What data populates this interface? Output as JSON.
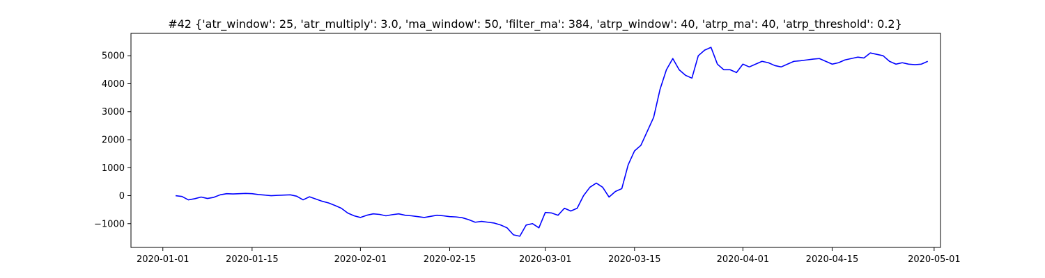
{
  "chart_data": {
    "type": "line",
    "title": "#42 {'atr_window': 25, 'atr_multiply': 3.0, 'ma_window': 50, 'filter_ma': 384, 'atrp_window': 40, 'atrp_ma': 40, 'atrp_threshold': 0.2}",
    "xlabel": "",
    "ylabel": "",
    "x_axis_type": "date",
    "xlim": [
      "2019-12-27",
      "2020-05-02"
    ],
    "ylim": [
      -1850,
      5800
    ],
    "grid": false,
    "legend": "none",
    "x_ticks": [
      "2020-01-01",
      "2020-01-15",
      "2020-02-01",
      "2020-02-15",
      "2020-03-01",
      "2020-03-15",
      "2020-04-01",
      "2020-04-15",
      "2020-05-01"
    ],
    "y_ticks": [
      -1000,
      0,
      1000,
      2000,
      3000,
      4000,
      5000
    ],
    "y_tick_labels": [
      "−1000",
      "0",
      "1000",
      "2000",
      "3000",
      "4000",
      "5000"
    ],
    "series": [
      {
        "color": "#0000ff",
        "x": [
          "2020-01-03",
          "2020-01-04",
          "2020-01-05",
          "2020-01-06",
          "2020-01-07",
          "2020-01-08",
          "2020-01-09",
          "2020-01-10",
          "2020-01-11",
          "2020-01-12",
          "2020-01-13",
          "2020-01-14",
          "2020-01-15",
          "2020-01-16",
          "2020-01-17",
          "2020-01-18",
          "2020-01-19",
          "2020-01-20",
          "2020-01-21",
          "2020-01-22",
          "2020-01-23",
          "2020-01-24",
          "2020-01-25",
          "2020-01-26",
          "2020-01-27",
          "2020-01-28",
          "2020-01-29",
          "2020-01-30",
          "2020-01-31",
          "2020-02-01",
          "2020-02-02",
          "2020-02-03",
          "2020-02-04",
          "2020-02-05",
          "2020-02-06",
          "2020-02-07",
          "2020-02-08",
          "2020-02-09",
          "2020-02-10",
          "2020-02-11",
          "2020-02-12",
          "2020-02-13",
          "2020-02-14",
          "2020-02-15",
          "2020-02-16",
          "2020-02-17",
          "2020-02-18",
          "2020-02-19",
          "2020-02-20",
          "2020-02-21",
          "2020-02-22",
          "2020-02-23",
          "2020-02-24",
          "2020-02-25",
          "2020-02-26",
          "2020-02-27",
          "2020-02-28",
          "2020-02-29",
          "2020-03-01",
          "2020-03-02",
          "2020-03-03",
          "2020-03-04",
          "2020-03-05",
          "2020-03-06",
          "2020-03-07",
          "2020-03-08",
          "2020-03-09",
          "2020-03-10",
          "2020-03-11",
          "2020-03-12",
          "2020-03-13",
          "2020-03-14",
          "2020-03-15",
          "2020-03-16",
          "2020-03-17",
          "2020-03-18",
          "2020-03-19",
          "2020-03-20",
          "2020-03-21",
          "2020-03-22",
          "2020-03-23",
          "2020-03-24",
          "2020-03-25",
          "2020-03-26",
          "2020-03-27",
          "2020-03-28",
          "2020-03-29",
          "2020-03-30",
          "2020-03-31",
          "2020-04-01",
          "2020-04-02",
          "2020-04-03",
          "2020-04-04",
          "2020-04-05",
          "2020-04-06",
          "2020-04-07",
          "2020-04-08",
          "2020-04-09",
          "2020-04-10",
          "2020-04-11",
          "2020-04-12",
          "2020-04-13",
          "2020-04-14",
          "2020-04-15",
          "2020-04-16",
          "2020-04-17",
          "2020-04-18",
          "2020-04-19",
          "2020-04-20",
          "2020-04-21",
          "2020-04-22",
          "2020-04-23",
          "2020-04-24",
          "2020-04-25",
          "2020-04-26",
          "2020-04-27",
          "2020-04-28",
          "2020-04-29",
          "2020-04-30"
        ],
        "values": [
          0,
          -30,
          -150,
          -110,
          -50,
          -100,
          -60,
          30,
          70,
          60,
          70,
          80,
          70,
          40,
          20,
          0,
          10,
          20,
          30,
          -20,
          -150,
          -40,
          -120,
          -200,
          -260,
          -350,
          -450,
          -620,
          -720,
          -780,
          -700,
          -650,
          -670,
          -720,
          -680,
          -650,
          -700,
          -720,
          -750,
          -780,
          -740,
          -700,
          -720,
          -750,
          -760,
          -790,
          -860,
          -950,
          -920,
          -950,
          -980,
          -1050,
          -1150,
          -1400,
          -1450,
          -1050,
          -1000,
          -1150,
          -600,
          -620,
          -700,
          -450,
          -550,
          -450,
          0,
          300,
          450,
          300,
          -50,
          150,
          250,
          1100,
          1600,
          1800,
          2300,
          2800,
          3800,
          4500,
          4900,
          4500,
          4300,
          4200,
          5000,
          5200,
          5300,
          4700,
          4500,
          4500,
          4400,
          4700,
          4600,
          4700,
          4800,
          4750,
          4650,
          4600,
          4700,
          4800,
          4820,
          4850,
          4880,
          4900,
          4800,
          4700,
          4750,
          4850,
          4900,
          4950,
          4920,
          5100,
          5050,
          5000,
          4800,
          4700,
          4750,
          4700,
          4680,
          4700,
          4800
        ]
      }
    ]
  }
}
